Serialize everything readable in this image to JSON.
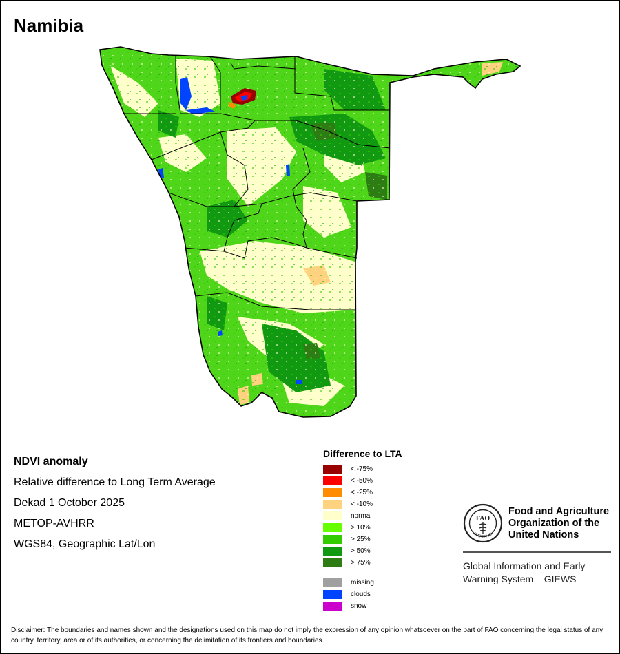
{
  "title": "Namibia",
  "info": {
    "product": "NDVI anomaly",
    "description": "Relative difference to Long Term Average",
    "period": "Dekad 1 October 2025",
    "sensor": "METOP-AVHRR",
    "projection": "WGS84, Geographic Lat/Lon"
  },
  "legend": {
    "title": "Difference to LTA",
    "classes": [
      {
        "label": "< -75%",
        "color": "#990000"
      },
      {
        "label": "< -50%",
        "color": "#ff0000"
      },
      {
        "label": "< -25%",
        "color": "#ff8c00"
      },
      {
        "label": "< -10%",
        "color": "#ffd280"
      },
      {
        "label": "normal",
        "color": "#ffffcc"
      },
      {
        "label": "> 10%",
        "color": "#66ff00"
      },
      {
        "label": "> 25%",
        "color": "#33cc00"
      },
      {
        "label": "> 50%",
        "color": "#119911"
      },
      {
        "label": "> 75%",
        "color": "#2e7d14"
      }
    ],
    "extra": [
      {
        "label": "missing",
        "color": "#a0a0a0"
      },
      {
        "label": "clouds",
        "color": "#0044ff"
      },
      {
        "label": "snow",
        "color": "#cc00cc"
      }
    ]
  },
  "fao": {
    "name": "Food and Agriculture Organization of the United Nations",
    "emblem_text": "FAO",
    "emblem_motto": "FIAT PANIS",
    "system": "Global Information and Early Warning System – GIEWS"
  },
  "disclaimer": "Disclaimer: The boundaries and names shown and the designations used on this map do not imply the expression of any opinion whatsoever on the part of FAO concerning the legal status of any country, territory, area or of its authorities, or concerning the delimitation of its frontiers and boundaries."
}
